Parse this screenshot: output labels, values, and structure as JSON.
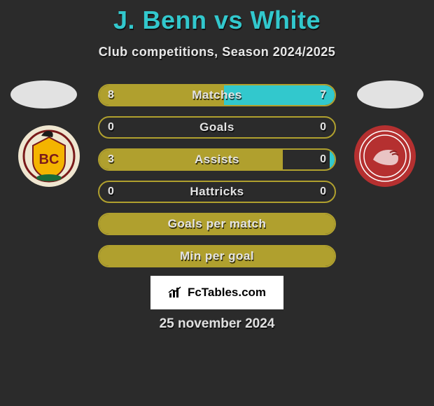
{
  "title": "J. Benn vs White",
  "subtitle": "Club competitions, Season 2024/2025",
  "date": "25 november 2024",
  "branding": "FcTables.com",
  "colors": {
    "accent_title": "#32c8cd",
    "left_fill": "#b0a02e",
    "right_fill": "#32c8cd",
    "border": "#b0a02e",
    "background": "#2b2b2b",
    "text": "#e4e4e4"
  },
  "badges": {
    "left": {
      "name": "bradford-city-badge",
      "bg": "#efe6d0",
      "ring": "#7a1a1a",
      "inner": "#f4b400",
      "text": "BC"
    },
    "right": {
      "name": "morecambe-badge",
      "bg": "#b53030",
      "ring": "#ffffff",
      "inner": "#e9c4c4",
      "text": ""
    }
  },
  "bars": [
    {
      "label": "Matches",
      "left_value": "8",
      "right_value": "7",
      "left_pct": 53,
      "right_pct": 47,
      "show_values": true,
      "full_single": false
    },
    {
      "label": "Goals",
      "left_value": "0",
      "right_value": "0",
      "left_pct": 0,
      "right_pct": 0,
      "show_values": true,
      "full_single": false
    },
    {
      "label": "Assists",
      "left_value": "3",
      "right_value": "0",
      "left_pct": 78,
      "right_pct": 2,
      "show_values": true,
      "full_single": false
    },
    {
      "label": "Hattricks",
      "left_value": "0",
      "right_value": "0",
      "left_pct": 0,
      "right_pct": 0,
      "show_values": true,
      "full_single": false
    },
    {
      "label": "Goals per match",
      "left_value": "",
      "right_value": "",
      "left_pct": 100,
      "right_pct": 0,
      "show_values": false,
      "full_single": true
    },
    {
      "label": "Min per goal",
      "left_value": "",
      "right_value": "",
      "left_pct": 100,
      "right_pct": 0,
      "show_values": false,
      "full_single": true
    }
  ],
  "typography": {
    "title_fontsize": 36,
    "subtitle_fontsize": 18,
    "bar_label_fontsize": 17,
    "bar_value_fontsize": 16,
    "date_fontsize": 19
  }
}
